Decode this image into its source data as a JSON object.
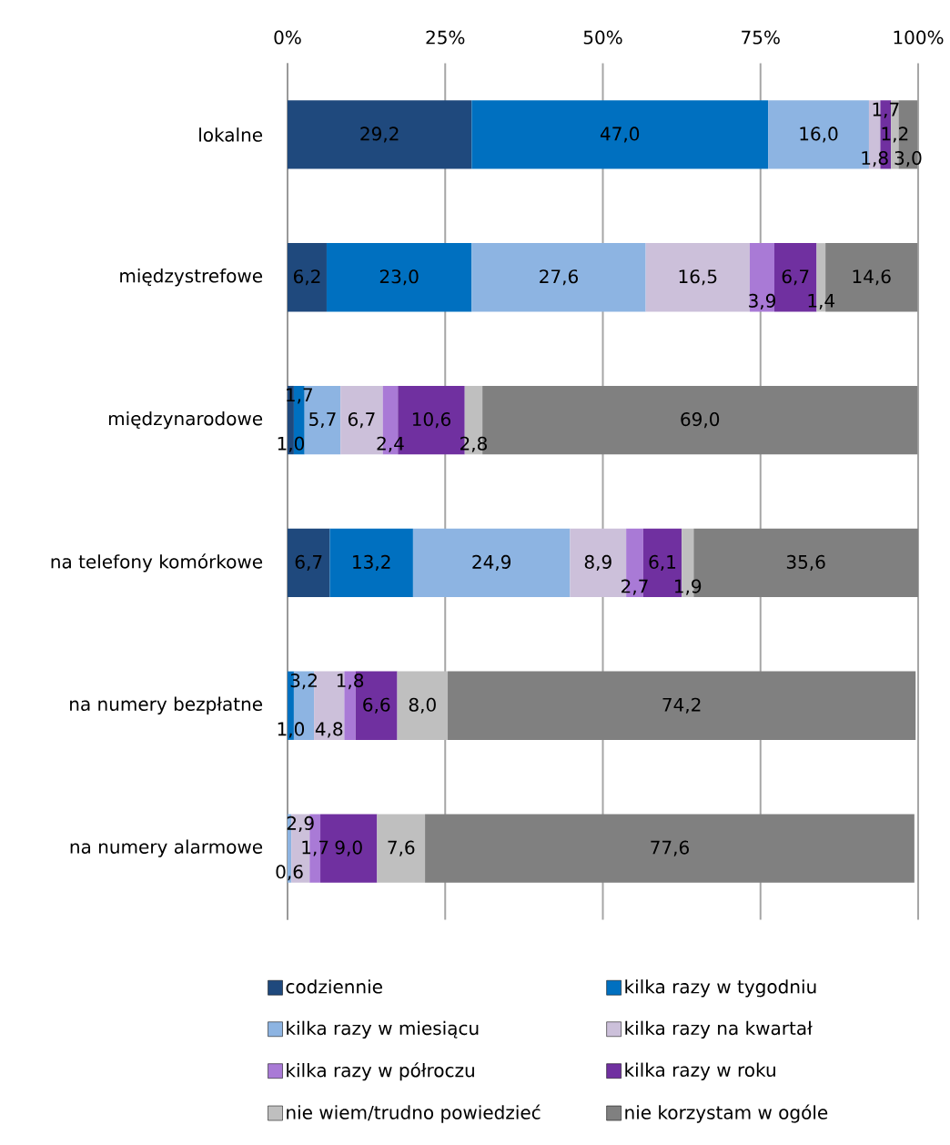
{
  "chart_data": {
    "type": "bar",
    "orientation": "horizontal",
    "stacked": true,
    "categories": [
      "lokalne",
      "międzystrefowe",
      "międzynarodowe",
      "na telefony komórkowe",
      "na numery bezpłatne",
      "na numery alarmowe"
    ],
    "xlim": [
      0,
      100
    ],
    "xticks": [
      {
        "value": 0,
        "label": "0%"
      },
      {
        "value": 25,
        "label": "25%"
      },
      {
        "value": 50,
        "label": "50%"
      },
      {
        "value": 75,
        "label": "75%"
      },
      {
        "value": 100,
        "label": "100%"
      }
    ],
    "grid": "x",
    "legend": "bottom",
    "series": [
      {
        "name": "codziennie",
        "color": "#1f497d",
        "values": [
          29.2,
          6.2,
          1.0,
          6.7,
          null,
          null
        ],
        "value_labels": [
          "29,2",
          "6,2",
          "1,0",
          "6,7",
          null,
          null
        ]
      },
      {
        "name": "kilka razy w tygodniu",
        "color": "#0070c0",
        "values": [
          47.0,
          23.0,
          1.7,
          13.2,
          1.0,
          null
        ],
        "value_labels": [
          "47,0",
          "23,0",
          "1,7",
          "13,2",
          "1,0",
          null
        ]
      },
      {
        "name": "kilka razy w miesiącu",
        "color": "#8db4e2",
        "values": [
          16.0,
          27.6,
          5.7,
          24.9,
          3.2,
          0.6
        ],
        "value_labels": [
          "16,0",
          "27,6",
          "5,7",
          "24,9",
          "3,2",
          "0,6"
        ]
      },
      {
        "name": "kilka razy na kwartał",
        "color": "#ccc0da",
        "values": [
          1.8,
          16.5,
          6.7,
          8.9,
          4.8,
          2.9
        ],
        "value_labels": [
          "1,8",
          "16,5",
          "6,7",
          "8,9",
          "4,8",
          "2,9"
        ]
      },
      {
        "name": "kilka razy w półroczu",
        "color": "#a97ad6",
        "values": [
          null,
          3.9,
          2.4,
          2.7,
          1.8,
          1.7
        ],
        "value_labels": [
          null,
          "3,9",
          "2,4",
          "2,7",
          "1,8",
          "1,7"
        ]
      },
      {
        "name": "kilka razy w roku",
        "color": "#7030a0",
        "values": [
          1.7,
          6.7,
          10.6,
          6.1,
          6.6,
          9.0
        ],
        "value_labels": [
          "1,7",
          "6,7",
          "10,6",
          "6,1",
          "6,6",
          "9,0"
        ]
      },
      {
        "name": "nie wiem/trudno powiedzieć",
        "color": "#bfbfbf",
        "values": [
          1.2,
          1.4,
          2.8,
          1.9,
          8.0,
          7.6
        ],
        "value_labels": [
          "1,2",
          "1,4",
          "2,8",
          "1,9",
          "8,0",
          "7,6"
        ]
      },
      {
        "name": "nie korzystam w ogóle",
        "color": "#808080",
        "values": [
          3.0,
          14.6,
          69.0,
          35.6,
          74.2,
          77.6
        ],
        "value_labels": [
          "3,0",
          "14,6",
          "69,0",
          "35,6",
          "74,2",
          "77,6"
        ]
      }
    ]
  }
}
